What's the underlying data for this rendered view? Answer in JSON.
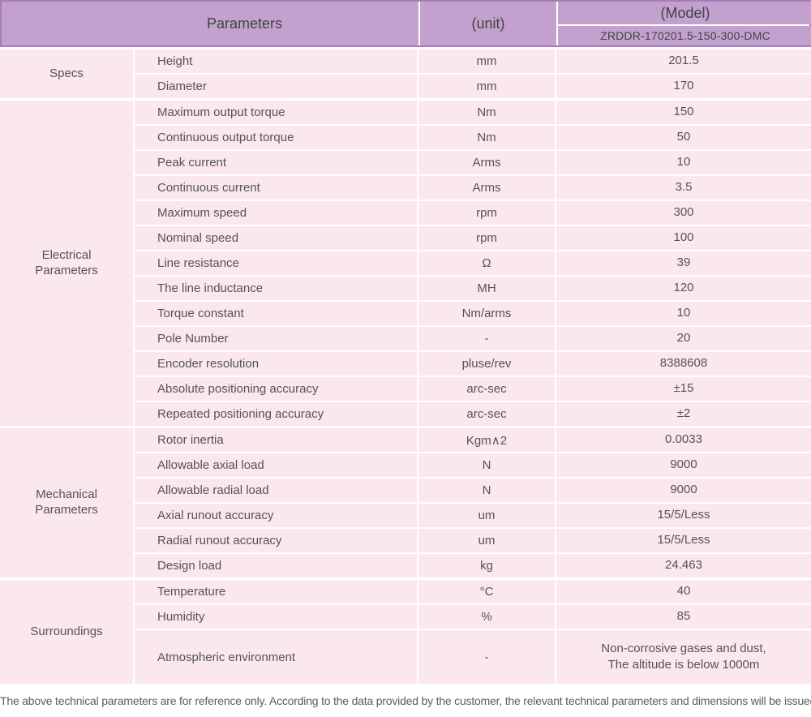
{
  "header": {
    "parameters_label": "Parameters",
    "unit_label": "(unit)",
    "model_label": "(Model)",
    "model_value": "ZRDDR-170201.5-150-300-DMC"
  },
  "colors": {
    "header_bg": "#c3a1ce",
    "header_border": "#a87cb8",
    "row_bg": "#fae7f0",
    "text": "#4f4f4f"
  },
  "table": {
    "groups": [
      {
        "label": "Specs",
        "rows": [
          {
            "name": "Height",
            "unit": "mm",
            "value": "201.5"
          },
          {
            "name": "Diameter",
            "unit": "mm",
            "value": "170"
          }
        ]
      },
      {
        "label": "Electrical Parameters",
        "rows": [
          {
            "name": "Maximum output torque",
            "unit": "Nm",
            "value": "150"
          },
          {
            "name": "Continuous output torque",
            "unit": "Nm",
            "value": "50"
          },
          {
            "name": "Peak current",
            "unit": "Arms",
            "value": "10"
          },
          {
            "name": "Continuous current",
            "unit": "Arms",
            "value": "3.5"
          },
          {
            "name": "Maximum speed",
            "unit": "rpm",
            "value": "300"
          },
          {
            "name": "Nominal speed",
            "unit": "rpm",
            "value": "100"
          },
          {
            "name": "Line resistance",
            "unit": "Ω",
            "value": "39"
          },
          {
            "name": "The line inductance",
            "unit": "MH",
            "value": "120"
          },
          {
            "name": "Torque constant",
            "unit": "Nm/arms",
            "value": "10"
          },
          {
            "name": "Pole Number",
            "unit": "-",
            "value": "20"
          },
          {
            "name": "Encoder resolution",
            "unit": "pluse/rev",
            "value": "8388608"
          },
          {
            "name": "Absolute positioning accuracy",
            "unit": "arc-sec",
            "value": "±15"
          },
          {
            "name": "Repeated positioning accuracy",
            "unit": "arc-sec",
            "value": "±2"
          }
        ]
      },
      {
        "label": "Mechanical Parameters",
        "rows": [
          {
            "name": "Rotor inertia",
            "unit": "Kgm∧2",
            "value": "0.0033"
          },
          {
            "name": "Allowable axial load",
            "unit": "N",
            "value": "9000"
          },
          {
            "name": "Allowable radial load",
            "unit": "N",
            "value": "9000"
          },
          {
            "name": "Axial runout accuracy",
            "unit": "um",
            "value": "15/5/Less"
          },
          {
            "name": "Radial runout accuracy",
            "unit": "um",
            "value": "15/5/Less"
          },
          {
            "name": "Design load",
            "unit": "kg",
            "value": "24.463"
          }
        ]
      },
      {
        "label": "Surroundings",
        "rows": [
          {
            "name": "Temperature",
            "unit": "°C",
            "value": "40"
          },
          {
            "name": "Humidity",
            "unit": "%",
            "value": "85"
          },
          {
            "name": "Atmospheric environment",
            "unit": "-",
            "value": "Non-corrosive gases and dust,\nThe altitude is below 1000m"
          }
        ]
      }
    ]
  },
  "footer": {
    "note": "The above technical parameters are for reference only. According to the data provided by the customer, the relevant technical parameters and dimensions will be issued."
  }
}
